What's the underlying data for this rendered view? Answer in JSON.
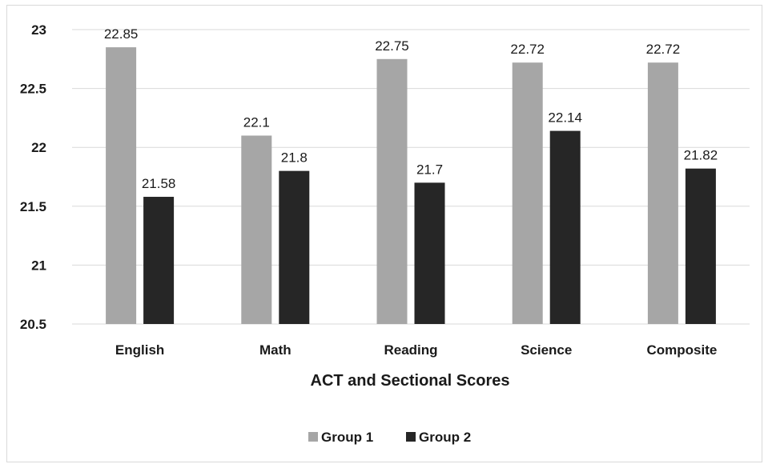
{
  "chart_data": {
    "type": "bar",
    "title": "",
    "xlabel": "ACT and Sectional Scores",
    "ylabel": "",
    "categories": [
      "English",
      "Math",
      "Reading",
      "Science",
      "Composite"
    ],
    "series": [
      {
        "name": "Group 1",
        "color": "#a6a6a6",
        "values": [
          22.85,
          22.1,
          22.75,
          22.72,
          22.72
        ]
      },
      {
        "name": "Group 2",
        "color": "#262626",
        "values": [
          21.58,
          21.8,
          21.7,
          22.14,
          21.82
        ]
      }
    ],
    "ylim": [
      20.5,
      23
    ],
    "yticks": [
      "20.5",
      "21",
      "21.5",
      "22",
      "22.5",
      "23"
    ],
    "grid": true,
    "legend_position": "bottom"
  }
}
